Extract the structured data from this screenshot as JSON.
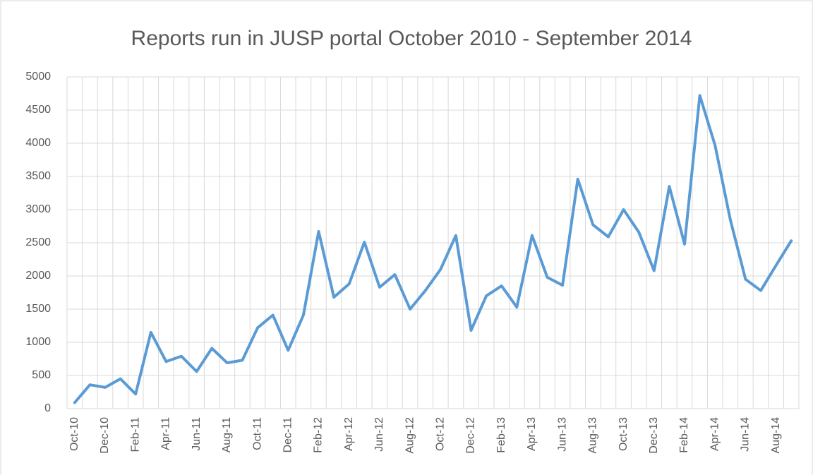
{
  "chart_data": {
    "type": "line",
    "title": "Reports run in JUSP portal October 2010 - September 2014",
    "categories": [
      "Oct-10",
      null,
      "Dec-10",
      null,
      "Feb-11",
      null,
      "Apr-11",
      null,
      "Jun-11",
      null,
      "Aug-11",
      null,
      "Oct-11",
      null,
      "Dec-11",
      null,
      "Feb-12",
      null,
      "Apr-12",
      null,
      "Jun-12",
      null,
      "Aug-12",
      null,
      "Oct-12",
      null,
      "Dec-12",
      null,
      "Feb-13",
      null,
      "Apr-13",
      null,
      "Jun-13",
      null,
      "Aug-13",
      null,
      "Oct-13",
      null,
      "Dec-13",
      null,
      "Feb-14",
      null,
      "Apr-14",
      null,
      "Jun-14",
      null,
      "Aug-14",
      null
    ],
    "values": [
      90,
      360,
      320,
      450,
      220,
      1150,
      710,
      790,
      560,
      910,
      690,
      730,
      1220,
      1410,
      880,
      1410,
      2670,
      1680,
      1880,
      2510,
      1830,
      2020,
      1500,
      1780,
      2100,
      2610,
      1180,
      1700,
      1850,
      1530,
      2610,
      1980,
      1860,
      3460,
      2770,
      2590,
      3000,
      2660,
      2080,
      3350,
      2480,
      4720,
      3970,
      2850,
      1950,
      1780,
      2160,
      2530
    ],
    "color": "#5b9bd5",
    "ylim": [
      0,
      5000
    ],
    "yticks": [
      0,
      500,
      1000,
      1500,
      2000,
      2500,
      3000,
      3500,
      4000,
      4500,
      5000
    ],
    "grid": true
  }
}
